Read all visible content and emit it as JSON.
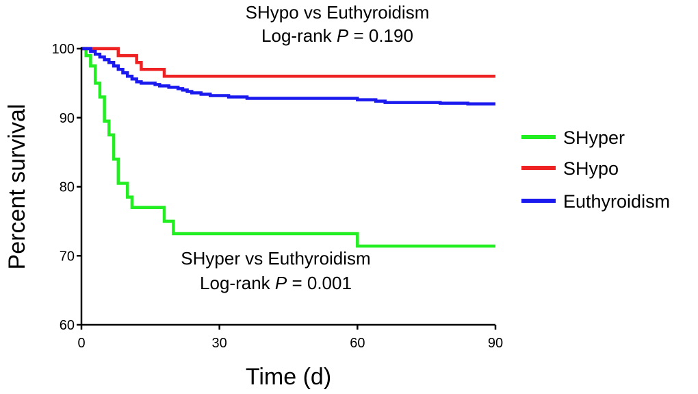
{
  "chart_data": {
    "type": "line",
    "step": true,
    "xlabel": "Time (d)",
    "ylabel": "Percent survival",
    "xlim": [
      0,
      90
    ],
    "ylim": [
      60,
      100
    ],
    "xticks": [
      0,
      30,
      60,
      90
    ],
    "yticks": [
      60,
      70,
      80,
      90,
      100
    ],
    "grid": false,
    "legend_position": "right",
    "annotations": [
      {
        "name": "annotation-shypo",
        "line1": "SHypo vs Euthyroidism",
        "line2_prefix": "Log-rank ",
        "line2_italic": "P",
        "line2_suffix": " = 0.190"
      },
      {
        "name": "annotation-shyper",
        "line1": "SHyper vs Euthyroidism",
        "line2_prefix": "Log-rank ",
        "line2_italic": "P",
        "line2_suffix": " = 0.001"
      }
    ],
    "series": [
      {
        "name": "SHyper",
        "color": "#22ee22",
        "points": [
          [
            0,
            100
          ],
          [
            1,
            99
          ],
          [
            2,
            97.5
          ],
          [
            3,
            95
          ],
          [
            4,
            93
          ],
          [
            5,
            89.5
          ],
          [
            6,
            87.5
          ],
          [
            7,
            84
          ],
          [
            8,
            80.5
          ],
          [
            10,
            78.5
          ],
          [
            11,
            77
          ],
          [
            18,
            75
          ],
          [
            20,
            73.2
          ],
          [
            60,
            71.4
          ],
          [
            90,
            71.4
          ]
        ]
      },
      {
        "name": "SHypo",
        "color": "#ee2222",
        "points": [
          [
            0,
            100
          ],
          [
            8,
            99
          ],
          [
            12,
            98
          ],
          [
            13,
            97
          ],
          [
            18,
            96
          ],
          [
            90,
            96
          ]
        ]
      },
      {
        "name": "Euthyroidism",
        "color": "#1a1aee",
        "points": [
          [
            0,
            100
          ],
          [
            2,
            99.6
          ],
          [
            3,
            99.2
          ],
          [
            4,
            98.8
          ],
          [
            5,
            98.4
          ],
          [
            6,
            98
          ],
          [
            7,
            97.5
          ],
          [
            8,
            97
          ],
          [
            9,
            96.5
          ],
          [
            10,
            96
          ],
          [
            11,
            95.6
          ],
          [
            12,
            95.2
          ],
          [
            13,
            95
          ],
          [
            16,
            94.8
          ],
          [
            17,
            94.6
          ],
          [
            19,
            94.4
          ],
          [
            21,
            94.2
          ],
          [
            22,
            94
          ],
          [
            23,
            93.8
          ],
          [
            24,
            93.6
          ],
          [
            26,
            93.4
          ],
          [
            28,
            93.2
          ],
          [
            32,
            93
          ],
          [
            36,
            92.8
          ],
          [
            60,
            92.6
          ],
          [
            64,
            92.4
          ],
          [
            66,
            92.2
          ],
          [
            78,
            92.1
          ],
          [
            84,
            92
          ],
          [
            90,
            92
          ]
        ]
      }
    ]
  }
}
